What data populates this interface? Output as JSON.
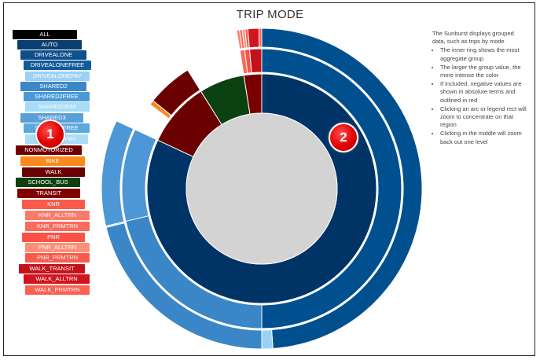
{
  "chart_data": {
    "type": "sunburst",
    "title": "TRIP MODE",
    "legend": [
      {
        "label": "ALL",
        "color": "#000000"
      },
      {
        "label": "AUTO",
        "color": "#0c3e6f"
      },
      {
        "label": "DRIVEALONE",
        "color": "#0f4f8a"
      },
      {
        "label": "DRIVEALONEFREE",
        "color": "#135c9a"
      },
      {
        "label": "DRIVEALONEPAY",
        "color": "#9ad1f5"
      },
      {
        "label": "SHARED2",
        "color": "#3b88c8"
      },
      {
        "label": "SHARED2FREE",
        "color": "#4a9ad8"
      },
      {
        "label": "SHARED2PAY",
        "color": "#a6dcf7"
      },
      {
        "label": "SHARED3",
        "color": "#5a9fd6"
      },
      {
        "label": "SHARED3FREE",
        "color": "#5ba8de"
      },
      {
        "label": "SHARED3PAY",
        "color": "#a9dcf6"
      },
      {
        "label": "NONMOTORIZED",
        "color": "#6f0000"
      },
      {
        "label": "BIKE",
        "color": "#f98a1c"
      },
      {
        "label": "WALK",
        "color": "#6a0000"
      },
      {
        "label": "SCHOOL_BUS",
        "color": "#0b4010"
      },
      {
        "label": "TRANSIT",
        "color": "#7f0000"
      },
      {
        "label": "KNR",
        "color": "#fb5a4b"
      },
      {
        "label": "KNR_ALLTRN",
        "color": "#fb7a68"
      },
      {
        "label": "KNR_PRMTRN",
        "color": "#fb6a5a"
      },
      {
        "label": "PNR",
        "color": "#fb5146"
      },
      {
        "label": "PNR_ALLTRN",
        "color": "#fc9078"
      },
      {
        "label": "PNR_PRMTRN",
        "color": "#fb5a4b"
      },
      {
        "label": "WALK_TRANSIT",
        "color": "#c2131b"
      },
      {
        "label": "WALK_ALLTRN",
        "color": "#d1141e"
      },
      {
        "label": "WALK_PRMTRN",
        "color": "#fb6050"
      }
    ],
    "rings": {
      "center": {
        "color": "#d3d3d3"
      },
      "inner": [
        {
          "name": "AUTO",
          "start": 0,
          "end": 295,
          "color": "#003366"
        },
        {
          "name": "NONMOTORIZED",
          "start": 295,
          "end": 328,
          "color": "#6b0000"
        },
        {
          "name": "SCHOOL_BUS",
          "start": 328,
          "end": 351,
          "color": "#0b4010"
        },
        {
          "name": "TRANSIT",
          "start": 351,
          "end": 360,
          "color": "#7a0000"
        }
      ],
      "middle": [
        {
          "name": "DRIVEALONE",
          "start": 0,
          "end": 180,
          "color": "#00508f"
        },
        {
          "name": "SHARED2",
          "start": 180,
          "end": 256.5,
          "color": "#3a86c6"
        },
        {
          "name": "SHARED3",
          "start": 256.5,
          "end": 295,
          "color": "#4d97d6"
        },
        {
          "name": "BIKE",
          "start": 307,
          "end": 309,
          "color": "#f98a1c"
        },
        {
          "name": "WALK",
          "start": 309,
          "end": 328,
          "color": "#6b0000"
        },
        {
          "name": "KNR",
          "start": 351,
          "end": 353,
          "color": "#fb6a5a"
        },
        {
          "name": "PNR",
          "start": 353,
          "end": 355,
          "color": "#fb5146"
        },
        {
          "name": "WALK_TRANSIT",
          "start": 355,
          "end": 360,
          "color": "#c2131b"
        }
      ],
      "outer": [
        {
          "name": "DRIVEALONEFREE",
          "start": 0,
          "end": 176,
          "color": "#00508f"
        },
        {
          "name": "DRIVEALONEPAY",
          "start": 176,
          "end": 180,
          "color": "#9ad1f5"
        },
        {
          "name": "SHARED2FREE",
          "start": 180,
          "end": 256,
          "color": "#3a86c6"
        },
        {
          "name": "SHARED2PAY",
          "start": 256,
          "end": 256.5,
          "color": "#a6dcf7"
        },
        {
          "name": "SHARED3FREE",
          "start": 256.5,
          "end": 295,
          "color": "#4d97d6"
        },
        {
          "name": "KNR_ALLTRN",
          "start": 351,
          "end": 352,
          "color": "#fb7a68"
        },
        {
          "name": "KNR_PRMTRN",
          "start": 352,
          "end": 353,
          "color": "#fb6a5a"
        },
        {
          "name": "PNR_ALLTRN",
          "start": 353,
          "end": 354,
          "color": "#fc9078"
        },
        {
          "name": "PNR_PRMTRN",
          "start": 354,
          "end": 355,
          "color": "#fb5a4b"
        },
        {
          "name": "WALK_ALLTRN",
          "start": 355,
          "end": 359,
          "color": "#d1141e"
        },
        {
          "name": "WALK_PRMTRN",
          "start": 359,
          "end": 360,
          "color": "#fb6050"
        }
      ]
    }
  },
  "notes": {
    "intro": "The Sunburst displays grouped data, such as trips by mode",
    "bullets": [
      "The inner ring shows the most aggregate group",
      "The larger the group value, the more intense the color",
      "If included, negative values are shown in absolute terms and outlined in red",
      "Clicking an arc or legend rect will zoom to concentrate on that region",
      "Clicking in the middle will zoom back out one level"
    ]
  },
  "badges": {
    "one": "1",
    "two": "2"
  }
}
